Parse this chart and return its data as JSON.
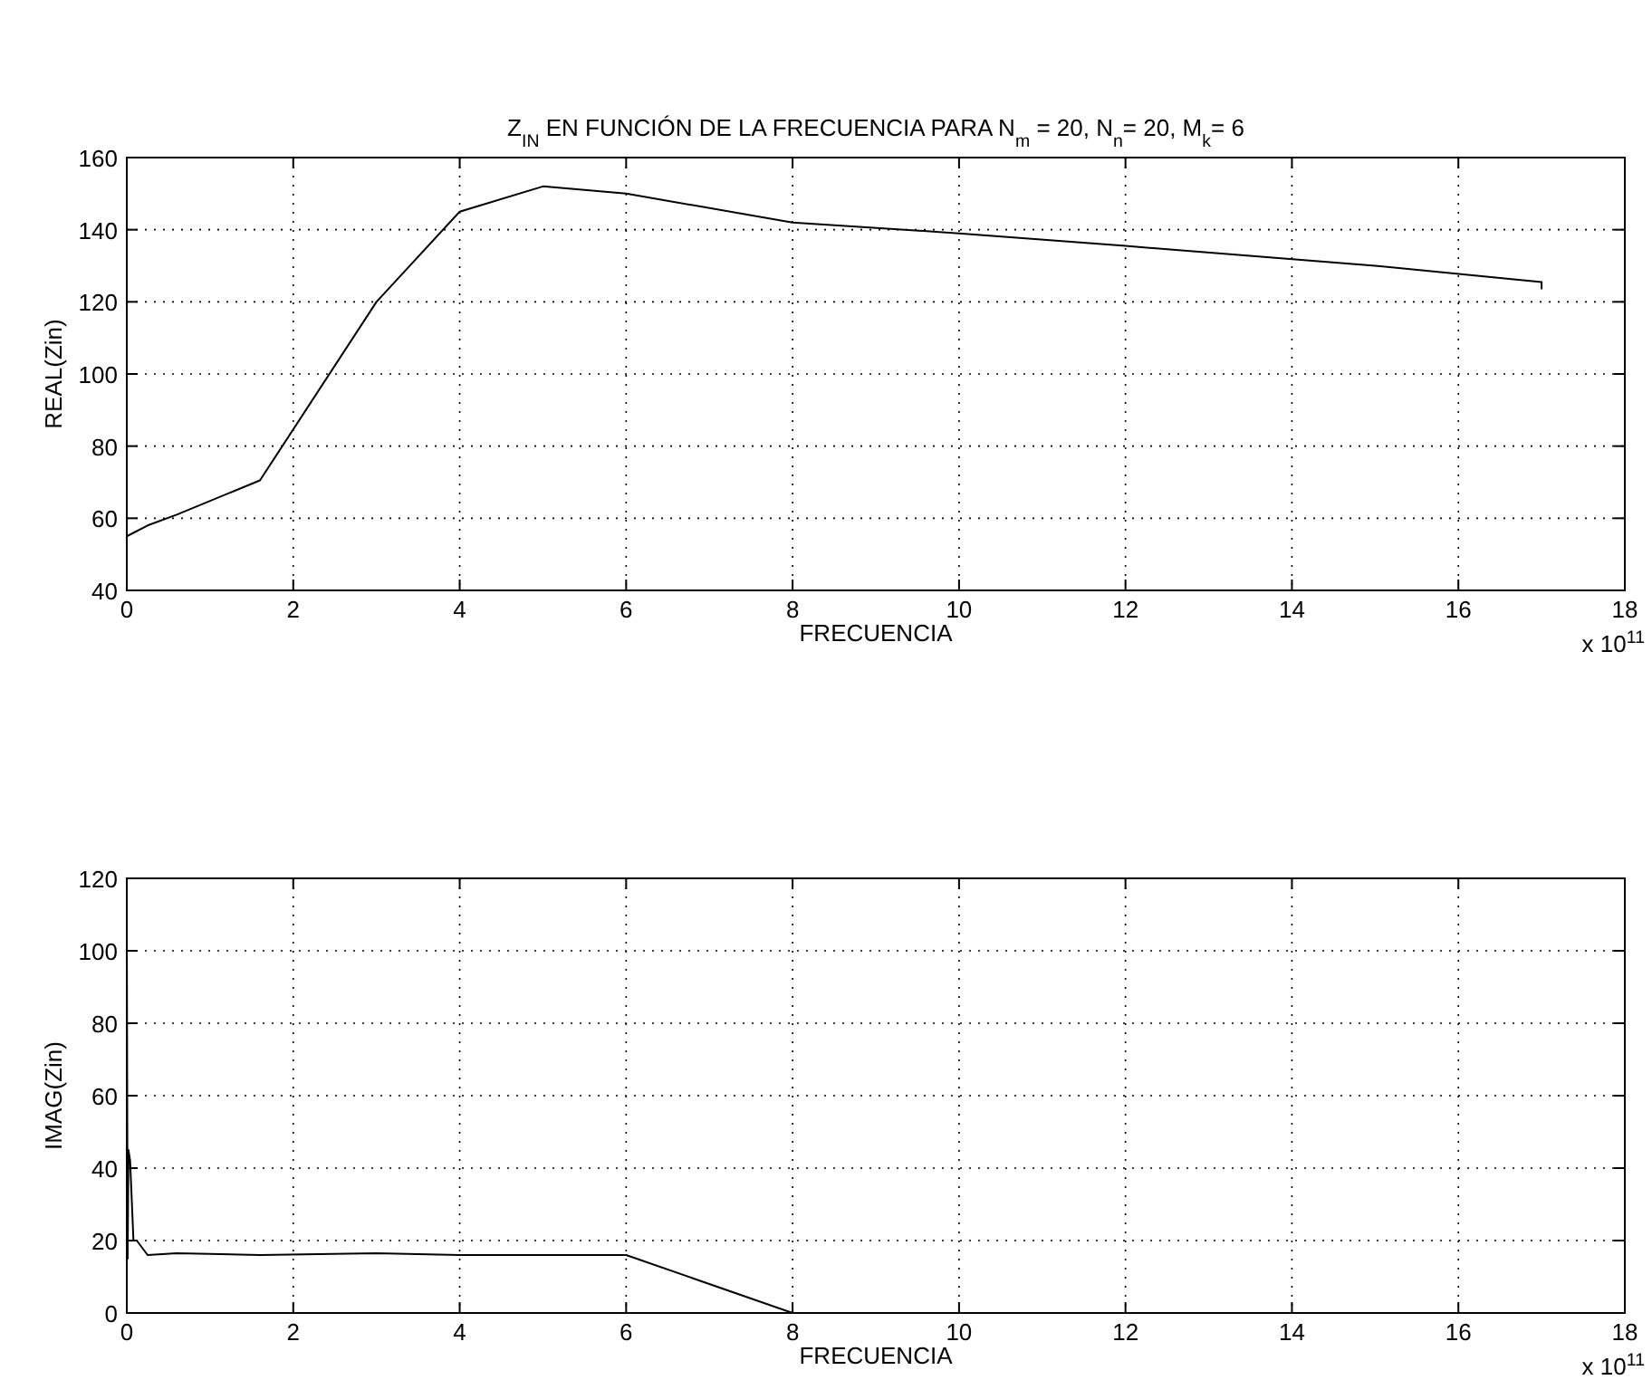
{
  "chart_data": [
    {
      "type": "line",
      "title": "Z$_{IN}$ EN FUNCIÓN DE LA FRECUENCIA PARA N$_{m}$ = 20, N$_{n}$= 20, M$_{k}$= 6",
      "xlabel": "FRECUENCIA",
      "ylabel": "REAL(Zin)",
      "annotations": [
        "x 10$^{11}$"
      ],
      "x": [
        0,
        0.25,
        0.6,
        1.6,
        3,
        4,
        5,
        6,
        8,
        10,
        12,
        15,
        17,
        17
      ],
      "series": [
        {
          "color": "#000000",
          "values": [
            55,
            58,
            61,
            70.5,
            120,
            145,
            152,
            150,
            142,
            139,
            135.5,
            130,
            125.5,
            123.5
          ]
        }
      ],
      "xlim": [
        0,
        18
      ],
      "xticks": [
        0,
        2,
        4,
        6,
        8,
        10,
        12,
        14,
        16,
        18
      ],
      "ylim": [
        40,
        160
      ],
      "yticks": [
        40,
        60,
        80,
        100,
        120,
        140,
        160
      ],
      "grid": true
    },
    {
      "type": "line",
      "xlabel": "FRECUENCIA",
      "ylabel": "IMAG(Zin)",
      "annotations": [
        "x 10$^{11}$"
      ],
      "x": [
        0,
        0.01,
        0.02,
        0.04,
        0.08,
        0.12,
        0.25,
        0.6,
        1.6,
        3,
        4,
        6,
        8,
        10,
        12,
        15,
        17
      ],
      "series": [
        {
          "color": "#000000",
          "values": [
            105,
            15,
            45,
            42,
            20,
            20,
            16,
            16.5,
            16,
            16.5,
            16,
            16,
            0,
            0,
            0,
            0,
            0
          ]
        }
      ],
      "xlim": [
        0,
        18
      ],
      "xticks": [
        0,
        2,
        4,
        6,
        8,
        10,
        12,
        14,
        16,
        18
      ],
      "ylim": [
        0,
        120
      ],
      "yticks": [
        0,
        20,
        40,
        60,
        80,
        100,
        120
      ],
      "grid": true
    }
  ]
}
